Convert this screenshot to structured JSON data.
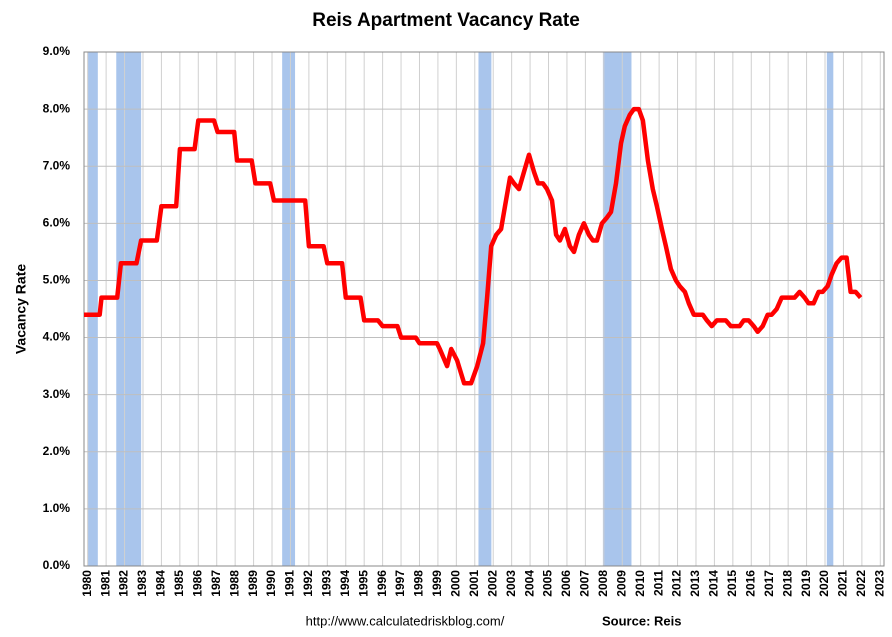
{
  "chart_data": {
    "type": "line",
    "title": "Reis Apartment Vacancy Rate",
    "y_label": "Vacancy Rate",
    "footer_url": "http://www.calculatedriskblog.com/",
    "source": "Source: Reis",
    "color": "#ff0000",
    "recession_color": "#a9c5ec",
    "grid": true,
    "recessions": [
      [
        1980.0,
        1980.55
      ],
      [
        1981.55,
        1982.9
      ],
      [
        1990.55,
        1991.25
      ],
      [
        2001.2,
        2001.9
      ],
      [
        2007.95,
        2009.5
      ],
      [
        2020.1,
        2020.45
      ]
    ],
    "x": [
      1979.8,
      1980.65,
      1980.75,
      1981.6,
      1981.8,
      1982.65,
      1982.9,
      1983.75,
      1984.0,
      1984.8,
      1985.0,
      1985.8,
      1986.0,
      1986.85,
      1987.05,
      1987.95,
      1988.1,
      1988.9,
      1989.1,
      1989.9,
      1990.1,
      1991.8,
      1992.0,
      1992.8,
      1993.0,
      1993.8,
      1994.0,
      1994.8,
      1995.0,
      1995.75,
      1996.0,
      1996.8,
      1997.0,
      1997.8,
      1998.0,
      1998.95,
      1999.1,
      1999.5,
      1999.72,
      2000.04,
      2000.42,
      2000.8,
      2001.13,
      2001.45,
      2001.67,
      2001.89,
      2002.16,
      2002.43,
      2002.64,
      2002.91,
      2003.13,
      2003.4,
      2003.67,
      2003.94,
      2004.21,
      2004.43,
      2004.7,
      2004.92,
      2005.19,
      2005.41,
      2005.62,
      2005.89,
      2006.16,
      2006.38,
      2006.65,
      2006.92,
      2007.19,
      2007.41,
      2007.63,
      2007.9,
      2008.17,
      2008.39,
      2008.66,
      2008.93,
      2009.14,
      2009.41,
      2009.63,
      2009.9,
      2010.12,
      2010.39,
      2010.66,
      2010.88,
      2011.15,
      2011.37,
      2011.64,
      2011.91,
      2012.12,
      2012.4,
      2012.61,
      2012.88,
      2013.15,
      2013.37,
      2013.59,
      2013.86,
      2014.13,
      2014.34,
      2014.62,
      2014.89,
      2015.1,
      2015.37,
      2015.59,
      2015.86,
      2016.13,
      2016.35,
      2016.62,
      2016.89,
      2017.11,
      2017.38,
      2017.65,
      2017.87,
      2018.14,
      2018.35,
      2018.62,
      2018.89,
      2019.11,
      2019.38,
      2019.65,
      2019.87,
      2020.14,
      2020.36,
      2020.63,
      2020.9,
      2021.17,
      2021.39,
      2021.66,
      2021.93
    ],
    "values": [
      4.4,
      4.4,
      4.7,
      4.7,
      5.3,
      5.3,
      5.7,
      5.7,
      6.3,
      6.3,
      7.3,
      7.3,
      7.8,
      7.8,
      7.6,
      7.6,
      7.1,
      7.1,
      6.7,
      6.7,
      6.4,
      6.4,
      5.6,
      5.6,
      5.3,
      5.3,
      4.7,
      4.7,
      4.3,
      4.3,
      4.2,
      4.2,
      4.0,
      4.0,
      3.9,
      3.9,
      3.8,
      3.5,
      3.8,
      3.6,
      3.2,
      3.2,
      3.5,
      3.9,
      4.7,
      5.6,
      5.8,
      5.9,
      6.3,
      6.8,
      6.7,
      6.6,
      6.9,
      7.2,
      6.9,
      6.7,
      6.7,
      6.6,
      6.4,
      5.8,
      5.7,
      5.9,
      5.6,
      5.5,
      5.8,
      6.0,
      5.8,
      5.7,
      5.7,
      6.0,
      6.1,
      6.2,
      6.7,
      7.4,
      7.7,
      7.9,
      8.0,
      8.0,
      7.8,
      7.1,
      6.6,
      6.3,
      5.9,
      5.6,
      5.2,
      5.0,
      4.9,
      4.8,
      4.6,
      4.4,
      4.4,
      4.4,
      4.3,
      4.2,
      4.3,
      4.3,
      4.3,
      4.2,
      4.2,
      4.2,
      4.3,
      4.3,
      4.2,
      4.1,
      4.2,
      4.4,
      4.4,
      4.5,
      4.7,
      4.7,
      4.7,
      4.7,
      4.8,
      4.7,
      4.6,
      4.6,
      4.8,
      4.8,
      4.9,
      5.1,
      5.3,
      5.4,
      5.4,
      4.8,
      4.8,
      4.7
    ],
    "xlim": [
      1979.8,
      2023.2
    ],
    "xticks": [
      1980,
      1981,
      1982,
      1983,
      1984,
      1985,
      1986,
      1987,
      1988,
      1989,
      1990,
      1991,
      1992,
      1993,
      1994,
      1995,
      1996,
      1997,
      1998,
      1999,
      2000,
      2001,
      2002,
      2003,
      2004,
      2005,
      2006,
      2007,
      2008,
      2009,
      2010,
      2011,
      2012,
      2013,
      2014,
      2015,
      2016,
      2017,
      2018,
      2019,
      2020,
      2021,
      2022,
      2023
    ],
    "ylim": [
      0,
      9
    ],
    "yticks": [
      {
        "value": 0,
        "label": "0.0%"
      },
      {
        "value": 1,
        "label": "1.0%"
      },
      {
        "value": 2,
        "label": "2.0%"
      },
      {
        "value": 3,
        "label": "3.0%"
      },
      {
        "value": 4,
        "label": "4.0%"
      },
      {
        "value": 5,
        "label": "5.0%"
      },
      {
        "value": 6,
        "label": "6.0%"
      },
      {
        "value": 7,
        "label": "7.0%"
      },
      {
        "value": 8,
        "label": "8.0%"
      },
      {
        "value": 9,
        "label": "9.0%"
      }
    ]
  }
}
